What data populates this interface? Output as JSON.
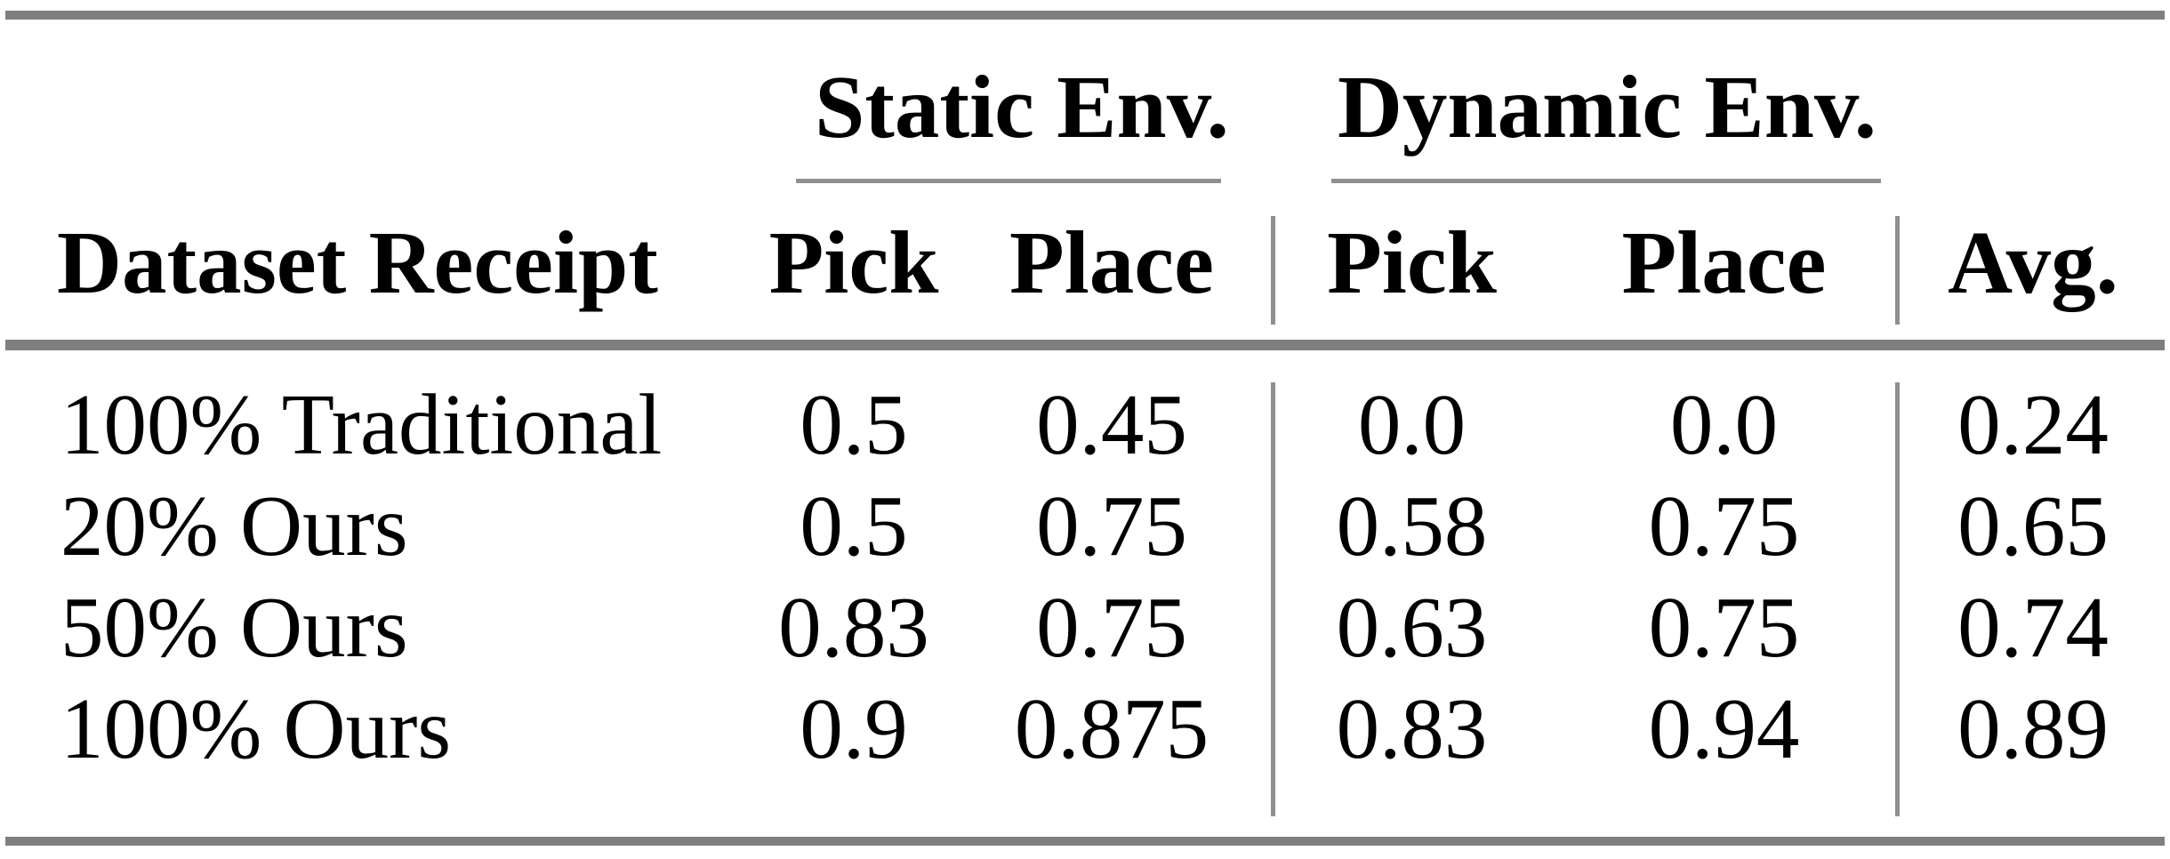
{
  "table": {
    "column_groups": [
      {
        "label": "Static Env."
      },
      {
        "label": "Dynamic Env."
      }
    ],
    "headers": {
      "row_label": "Dataset Receipt",
      "static_pick": "Pick",
      "static_place": "Place",
      "dynamic_pick": "Pick",
      "dynamic_place": "Place",
      "avg": "Avg."
    },
    "rows": [
      {
        "label": "100% Traditional",
        "static_pick": "0.5",
        "static_place": "0.45",
        "dynamic_pick": "0.0",
        "dynamic_place": "0.0",
        "avg": "0.24"
      },
      {
        "label": "20% Ours",
        "static_pick": "0.5",
        "static_place": "0.75",
        "dynamic_pick": "0.58",
        "dynamic_place": "0.75",
        "avg": "0.65"
      },
      {
        "label": "50% Ours",
        "static_pick": "0.83",
        "static_place": "0.75",
        "dynamic_pick": "0.63",
        "dynamic_place": "0.75",
        "avg": "0.74"
      },
      {
        "label": "100% Ours",
        "static_pick": "0.9",
        "static_place": "0.875",
        "dynamic_pick": "0.83",
        "dynamic_place": "0.94",
        "avg": "0.89"
      }
    ]
  },
  "colors": {
    "heavy_rule": "#7f7f7f",
    "light_rule": "#8f8f8f",
    "text": "#000000",
    "background": "#ffffff"
  },
  "chart_data": {
    "type": "table",
    "columns": [
      "Dataset Receipt",
      "Static Env. Pick",
      "Static Env. Place",
      "Dynamic Env. Pick",
      "Dynamic Env. Place",
      "Avg."
    ],
    "rows": [
      [
        "100% Traditional",
        0.5,
        0.45,
        0.0,
        0.0,
        0.24
      ],
      [
        "20% Ours",
        0.5,
        0.75,
        0.58,
        0.75,
        0.65
      ],
      [
        "50% Ours",
        0.83,
        0.75,
        0.63,
        0.75,
        0.74
      ],
      [
        "100% Ours",
        0.9,
        0.875,
        0.83,
        0.94,
        0.89
      ]
    ]
  }
}
